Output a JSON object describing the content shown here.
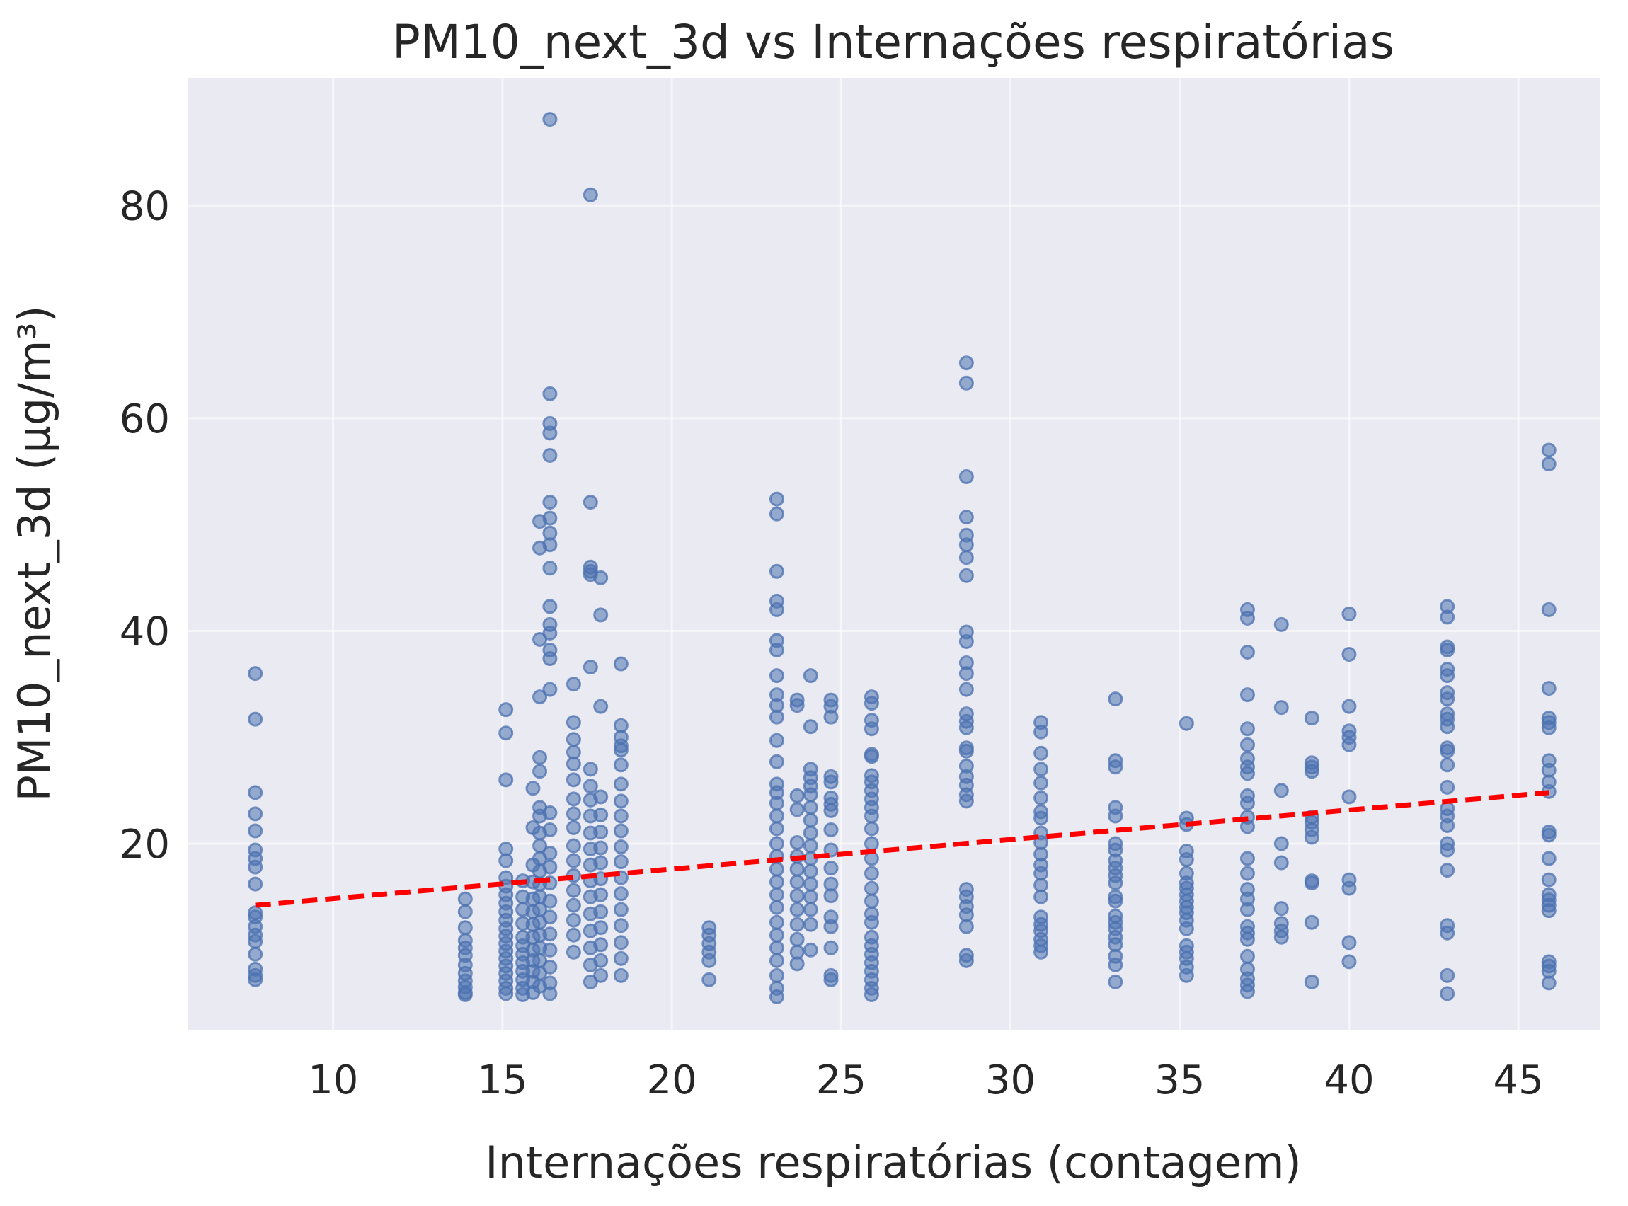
{
  "chart_data": {
    "type": "scatter",
    "title": "PM10_next_3d vs Internações respiratórias",
    "xlabel": "Internações respiratórias (contagem)",
    "ylabel": "PM10_next_3d (µg/m³)",
    "xlim": [
      5.7,
      47.4
    ],
    "ylim": [
      2.5,
      92
    ],
    "xticks": [
      10,
      15,
      20,
      25,
      30,
      35,
      40,
      45
    ],
    "yticks": [
      20,
      40,
      60,
      80
    ],
    "grid": true,
    "background_color": "#eaeaf2",
    "grid_color": "#ffffff",
    "point_color": "#4c72b0",
    "trend_color": "#ff0000",
    "trend_line": {
      "style": "dashed",
      "x": [
        7.7,
        45.9
      ],
      "y": [
        14.2,
        24.8
      ]
    },
    "columns": [
      {
        "x": 7.7,
        "y": [
          36.0,
          31.7,
          24.8,
          22.8,
          21.2,
          19.4,
          18.6,
          17.8,
          16.2,
          13.5,
          13.1,
          12.2,
          11.4,
          10.8,
          9.6,
          8.2,
          7.6,
          7.2
        ]
      },
      {
        "x": 13.9,
        "y": [
          14.8,
          13.6,
          12.1,
          10.9,
          10.2,
          9.5,
          8.6,
          7.8,
          7.1,
          6.5,
          6.0,
          5.8
        ]
      },
      {
        "x": 15.1,
        "y": [
          32.6,
          30.4,
          26.0,
          19.5,
          18.4,
          16.8,
          16.0,
          15.2,
          14.4,
          13.6,
          12.8,
          12.0,
          11.3,
          10.6,
          9.9,
          9.2,
          8.5,
          7.8,
          7.1,
          6.4,
          5.9
        ]
      },
      {
        "x": 15.6,
        "y": [
          16.5,
          15.0,
          13.8,
          12.5,
          11.2,
          10.4,
          9.6,
          8.8,
          8.0,
          7.2,
          6.4,
          5.8
        ]
      },
      {
        "x": 15.9,
        "y": [
          25.2,
          21.5,
          18.0,
          16.4,
          14.8,
          13.6,
          12.4,
          11.2,
          10.0,
          9.0,
          8.0,
          7.0,
          6.0
        ]
      },
      {
        "x": 16.1,
        "y": [
          50.3,
          47.8,
          39.2,
          33.8,
          28.1,
          26.8,
          23.4,
          22.6,
          21.0,
          19.8,
          18.6,
          17.4,
          16.2,
          15.0,
          13.8,
          12.6,
          11.4,
          10.2,
          9.0,
          7.8,
          6.6
        ]
      },
      {
        "x": 16.4,
        "y": [
          88.1,
          62.3,
          59.5,
          58.6,
          56.5,
          52.1,
          50.6,
          49.2,
          48.1,
          45.9,
          42.3,
          40.6,
          39.8,
          38.2,
          37.4,
          34.5,
          22.9,
          21.3,
          19.1,
          17.8,
          16.3,
          14.6,
          13.1,
          11.5,
          10.0,
          8.4,
          6.9,
          5.9
        ]
      },
      {
        "x": 17.1,
        "y": [
          35.0,
          31.4,
          29.8,
          28.6,
          27.5,
          26.0,
          24.2,
          22.8,
          21.5,
          19.8,
          18.4,
          17.0,
          15.6,
          14.2,
          12.8,
          11.4,
          9.8
        ]
      },
      {
        "x": 17.6,
        "y": [
          81.0,
          52.1,
          46.0,
          45.6,
          45.3,
          36.6,
          27.0,
          25.4,
          24.1,
          22.6,
          21.0,
          19.5,
          18.0,
          16.5,
          15.0,
          13.4,
          11.8,
          10.2,
          8.6,
          7.0
        ]
      },
      {
        "x": 17.9,
        "y": [
          45.0,
          41.5,
          32.9,
          24.4,
          22.7,
          21.1,
          19.6,
          18.2,
          16.7,
          15.2,
          13.6,
          12.1,
          10.5,
          9.0,
          7.6
        ]
      },
      {
        "x": 18.5,
        "y": [
          36.9,
          31.1,
          30.0,
          29.2,
          28.8,
          27.4,
          25.6,
          24.0,
          22.6,
          21.2,
          19.7,
          18.3,
          16.8,
          15.3,
          13.8,
          12.3,
          10.7,
          9.2,
          7.6
        ]
      },
      {
        "x": 21.1,
        "y": [
          12.1,
          11.4,
          10.6,
          9.8,
          9.0,
          7.2
        ]
      },
      {
        "x": 23.1,
        "y": [
          52.4,
          51.0,
          45.6,
          42.8,
          42.0,
          39.1,
          38.2,
          35.8,
          34.0,
          33.0,
          31.9,
          29.7,
          27.7,
          25.6,
          24.8,
          23.8,
          22.6,
          21.4,
          20.0,
          18.8,
          17.6,
          16.4,
          15.2,
          14.0,
          12.6,
          11.4,
          10.2,
          9.0,
          7.6,
          6.4,
          5.6
        ]
      },
      {
        "x": 23.7,
        "y": [
          33.5,
          33.0,
          24.5,
          23.2,
          20.1,
          18.8,
          17.6,
          16.4,
          15.1,
          13.8,
          12.4,
          11.0,
          9.8,
          8.7
        ]
      },
      {
        "x": 24.1,
        "y": [
          35.8,
          31.0,
          27.0,
          26.2,
          25.4,
          24.6,
          23.4,
          22.2,
          21.0,
          19.8,
          18.6,
          17.4,
          16.2,
          15.0,
          13.8,
          12.4,
          10.0
        ]
      },
      {
        "x": 24.7,
        "y": [
          33.5,
          32.9,
          31.9,
          26.3,
          25.8,
          24.3,
          23.7,
          23.1,
          21.3,
          19.4,
          17.7,
          16.2,
          15.1,
          13.1,
          12.2,
          10.2,
          7.6,
          7.2
        ]
      },
      {
        "x": 25.9,
        "y": [
          33.8,
          33.2,
          31.6,
          30.8,
          28.4,
          28.2,
          26.4,
          25.8,
          25.0,
          24.2,
          23.4,
          22.6,
          21.4,
          20.0,
          18.6,
          17.2,
          15.8,
          14.6,
          13.4,
          12.6,
          11.2,
          10.4,
          9.6,
          8.8,
          8.0,
          7.2,
          6.4,
          5.8
        ]
      },
      {
        "x": 28.7,
        "y": [
          65.2,
          63.3,
          54.5,
          50.7,
          49.0,
          48.1,
          46.9,
          45.2,
          39.9,
          39.0,
          37.0,
          36.0,
          34.5,
          32.2,
          31.5,
          30.9,
          29.0,
          28.7,
          27.3,
          26.3,
          25.5,
          24.6,
          24.0,
          15.7,
          15.0,
          14.1,
          13.3,
          12.2,
          9.5,
          9.0
        ]
      },
      {
        "x": 30.9,
        "y": [
          31.4,
          30.5,
          28.5,
          27.0,
          25.7,
          24.3,
          23.0,
          22.4,
          21.0,
          20.1,
          19.0,
          18.0,
          17.2,
          16.1,
          15.0,
          13.1,
          12.4,
          11.8,
          11.0,
          10.4,
          9.8
        ]
      },
      {
        "x": 33.1,
        "y": [
          33.6,
          27.8,
          27.2,
          23.4,
          22.6,
          20.0,
          19.4,
          18.4,
          17.7,
          17.0,
          16.3,
          15.0,
          14.6,
          13.2,
          12.6,
          12.0,
          11.2,
          10.5,
          9.4,
          8.6,
          7.0
        ]
      },
      {
        "x": 35.2,
        "y": [
          31.3,
          22.4,
          21.8,
          19.3,
          18.5,
          17.2,
          16.3,
          15.8,
          15.2,
          14.6,
          14.0,
          13.5,
          12.8,
          12.0,
          10.4,
          9.8,
          9.2,
          8.4,
          7.6
        ]
      },
      {
        "x": 37.0,
        "y": [
          42.0,
          41.2,
          38.0,
          34.0,
          30.8,
          29.3,
          28.0,
          27.2,
          26.6,
          24.5,
          23.8,
          22.5,
          21.6,
          18.6,
          17.2,
          15.7,
          14.8,
          13.8,
          12.2,
          11.6,
          11.0,
          9.4,
          8.2,
          7.3,
          6.7,
          6.1
        ]
      },
      {
        "x": 38.0,
        "y": [
          40.6,
          32.8,
          25.0,
          20.0,
          18.2,
          13.9,
          12.5,
          11.8,
          11.2
        ]
      },
      {
        "x": 38.9,
        "y": [
          31.8,
          27.6,
          27.2,
          26.8,
          22.5,
          22.0,
          21.3,
          20.6,
          16.5,
          16.3,
          12.6,
          7.0
        ]
      },
      {
        "x": 40.0,
        "y": [
          41.6,
          37.8,
          32.9,
          30.6,
          30.0,
          29.3,
          24.4,
          16.6,
          15.8,
          10.7,
          8.9
        ]
      },
      {
        "x": 42.9,
        "y": [
          42.3,
          41.3,
          38.5,
          38.2,
          36.4,
          35.8,
          34.2,
          33.6,
          32.2,
          31.7,
          31.0,
          29.0,
          28.7,
          27.4,
          25.3,
          23.3,
          22.6,
          21.7,
          20.0,
          19.4,
          17.5,
          12.3,
          11.6,
          7.6,
          5.9
        ]
      },
      {
        "x": 45.9,
        "y": [
          57.0,
          55.7,
          42.0,
          34.6,
          31.8,
          31.4,
          30.9,
          27.8,
          26.9,
          25.8,
          24.9,
          21.1,
          20.8,
          18.6,
          16.6,
          15.2,
          14.7,
          14.2,
          13.7,
          8.9,
          8.5,
          8.0,
          6.9
        ]
      }
    ]
  }
}
